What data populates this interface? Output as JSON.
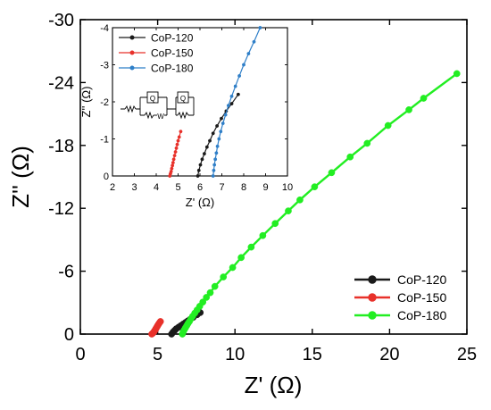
{
  "colors": {
    "CoP-120": "#1a1a1a",
    "CoP-150": "#e8312a",
    "CoP-180": "#22ee22",
    "CoP-180-inset": "#2f7fc8"
  },
  "chart_data": [
    {
      "type": "scatter",
      "role": "main",
      "xlabel": "Z' (Ω)",
      "ylabel": "Z'' (Ω)",
      "xlim": [
        0,
        25
      ],
      "ylim": [
        0,
        -30
      ],
      "xticks": [
        "0",
        "5",
        "10",
        "15",
        "20",
        "25"
      ],
      "yticks": [
        "0",
        "-6",
        "-12",
        "-18",
        "-24",
        "-30"
      ],
      "xtick_values": [
        0,
        5,
        10,
        15,
        20,
        25
      ],
      "ytick_values": [
        0,
        -6,
        -12,
        -18,
        -24,
        -30
      ],
      "grid": false,
      "legend_position": "bottom-right",
      "series": [
        {
          "name": "CoP-120",
          "color_key": "CoP-120",
          "x": [
            5.9,
            6.0,
            6.1,
            6.2,
            6.35,
            6.5,
            6.65,
            6.8,
            6.95,
            7.1,
            7.3,
            7.55,
            7.75
          ],
          "y": [
            0.0,
            -0.2,
            -0.35,
            -0.5,
            -0.65,
            -0.8,
            -0.95,
            -1.1,
            -1.25,
            -1.4,
            -1.6,
            -1.85,
            -2.05
          ]
        },
        {
          "name": "CoP-150",
          "color_key": "CoP-150",
          "x": [
            4.62,
            4.66,
            4.7,
            4.74,
            4.78,
            4.82,
            4.86,
            4.9,
            4.94,
            4.98,
            5.02,
            5.06,
            5.12,
            5.18
          ],
          "y": [
            0.0,
            -0.05,
            -0.1,
            -0.18,
            -0.26,
            -0.35,
            -0.45,
            -0.55,
            -0.65,
            -0.75,
            -0.85,
            -0.95,
            -1.08,
            -1.2
          ]
        },
        {
          "name": "CoP-180",
          "color_key": "CoP-180",
          "x": [
            6.6,
            6.65,
            6.72,
            6.8,
            6.88,
            6.96,
            7.05,
            7.15,
            7.26,
            7.4,
            7.55,
            7.72,
            7.92,
            8.15,
            8.4,
            8.7,
            9.25,
            9.85,
            10.4,
            11.05,
            11.8,
            12.6,
            13.45,
            14.2,
            15.15,
            16.25,
            17.45,
            18.55,
            19.9,
            21.25,
            22.2,
            24.35
          ],
          "y": [
            0.0,
            -0.2,
            -0.4,
            -0.6,
            -0.8,
            -1.0,
            -1.2,
            -1.45,
            -1.7,
            -2.0,
            -2.3,
            -2.65,
            -3.05,
            -3.5,
            -3.95,
            -4.55,
            -5.45,
            -6.35,
            -7.3,
            -8.3,
            -9.4,
            -10.55,
            -11.75,
            -12.8,
            -14.05,
            -15.4,
            -16.9,
            -18.2,
            -19.9,
            -21.4,
            -22.5,
            -24.85
          ]
        }
      ]
    },
    {
      "type": "scatter",
      "role": "inset",
      "xlabel": "Z' (Ω)",
      "ylabel": "Z'' (Ω)",
      "xlim": [
        2,
        10
      ],
      "ylim": [
        0,
        -4
      ],
      "xticks": [
        "2",
        "3",
        "4",
        "5",
        "6",
        "7",
        "8",
        "9",
        "10"
      ],
      "yticks": [
        "0",
        "-1",
        "-2",
        "-3",
        "-4"
      ],
      "xtick_values": [
        2,
        3,
        4,
        5,
        6,
        7,
        8,
        9,
        10
      ],
      "ytick_values": [
        0,
        -1,
        -2,
        -3,
        -4
      ],
      "grid": false,
      "legend_position": "top-left",
      "annotation": "equivalent-circuit",
      "circuit_labels": [
        "Q",
        "W",
        "Q"
      ],
      "series": [
        {
          "name": "CoP-120",
          "color_key": "CoP-120",
          "x": [
            5.9,
            5.95,
            6.02,
            6.1,
            6.2,
            6.32,
            6.45,
            6.6,
            6.78,
            6.98,
            7.2,
            7.45,
            7.75
          ],
          "y": [
            0.0,
            -0.15,
            -0.3,
            -0.45,
            -0.6,
            -0.78,
            -0.95,
            -1.15,
            -1.35,
            -1.55,
            -1.75,
            -1.95,
            -2.2
          ]
        },
        {
          "name": "CoP-150",
          "color_key": "CoP-150",
          "x": [
            4.62,
            4.65,
            4.68,
            4.71,
            4.74,
            4.77,
            4.8,
            4.84,
            4.88,
            4.92,
            4.96,
            5.0,
            5.05,
            5.12
          ],
          "y": [
            0.0,
            -0.06,
            -0.12,
            -0.2,
            -0.28,
            -0.36,
            -0.45,
            -0.55,
            -0.65,
            -0.75,
            -0.85,
            -0.95,
            -1.05,
            -1.2
          ]
        },
        {
          "name": "CoP-180",
          "color_key": "CoP-180-inset",
          "x": [
            6.6,
            6.63,
            6.66,
            6.7,
            6.75,
            6.8,
            6.87,
            6.95,
            7.05,
            7.17,
            7.3,
            7.45,
            7.62,
            7.8,
            8.0,
            8.22,
            8.47,
            8.75
          ],
          "y": [
            0.0,
            -0.15,
            -0.3,
            -0.45,
            -0.62,
            -0.8,
            -1.0,
            -1.2,
            -1.42,
            -1.65,
            -1.9,
            -2.15,
            -2.42,
            -2.7,
            -3.0,
            -3.3,
            -3.62,
            -4.0
          ]
        }
      ]
    }
  ]
}
